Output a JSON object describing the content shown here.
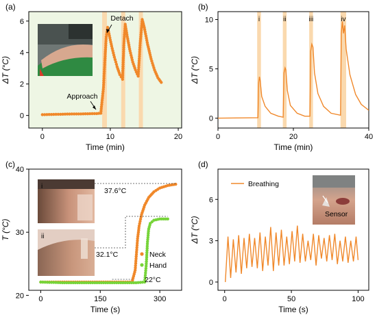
{
  "colors": {
    "orange": "#F0882A",
    "green": "#77D43A",
    "bg": "#EEF6E4",
    "band": "#FAD9AE"
  },
  "chart_data": [
    {
      "type": "scatter",
      "panel_label": "(a)",
      "xlabel": "Time (min)",
      "ylabel": "ΔT (°C)",
      "xlim": [
        -2,
        20.5
      ],
      "ylim": [
        -0.8,
        6.6
      ],
      "xticks": [
        "0",
        "10",
        "20"
      ],
      "yticks": [
        "0",
        "2",
        "4",
        "6"
      ],
      "background": "light green",
      "highlight_bands": [
        [
          8.8,
          9.5
        ],
        [
          11.6,
          12.2
        ],
        [
          14.2,
          14.8
        ]
      ],
      "annotations": {
        "approach": "Approach",
        "detach": "Detach"
      },
      "series": [
        {
          "points": [
            [
              0,
              0.05
            ],
            [
              2,
              0.07
            ],
            [
              4,
              0.09
            ],
            [
              6,
              0.1
            ],
            [
              8,
              0.12
            ],
            [
              8.6,
              0.14
            ],
            [
              9.0,
              1.8
            ],
            [
              9.2,
              3.5
            ],
            [
              9.4,
              5.0
            ],
            [
              9.6,
              5.6
            ],
            [
              9.8,
              5.2
            ],
            [
              10.2,
              4.4
            ],
            [
              10.6,
              3.7
            ],
            [
              11.0,
              3.1
            ],
            [
              11.4,
              2.6
            ],
            [
              11.8,
              2.3
            ],
            [
              12.0,
              4.6
            ],
            [
              12.2,
              5.8
            ],
            [
              12.5,
              5.0
            ],
            [
              12.9,
              4.1
            ],
            [
              13.3,
              3.4
            ],
            [
              13.7,
              2.9
            ],
            [
              14.1,
              2.5
            ],
            [
              14.4,
              4.6
            ],
            [
              14.7,
              6.1
            ],
            [
              15.0,
              5.6
            ],
            [
              15.5,
              4.5
            ],
            [
              16.0,
              3.6
            ],
            [
              16.5,
              2.9
            ],
            [
              17.0,
              2.4
            ],
            [
              17.5,
              2.1
            ]
          ]
        }
      ]
    },
    {
      "type": "line",
      "panel_label": "(b)",
      "xlabel": "Time (min)",
      "ylabel": "ΔT (°C)",
      "xlim": [
        0,
        40
      ],
      "ylim": [
        -1,
        10.8
      ],
      "xticks": [
        "0",
        "20",
        "40"
      ],
      "yticks": [
        "0",
        "5",
        "10"
      ],
      "band_labels": [
        "i",
        "ii",
        "iii",
        "iv"
      ],
      "highlight_bands": [
        [
          10.4,
          11.4
        ],
        [
          17.2,
          18.2
        ],
        [
          24.2,
          25.2
        ],
        [
          32.5,
          34.0
        ]
      ],
      "series": [
        {
          "points": [
            [
              0,
              0
            ],
            [
              10.6,
              0.05
            ],
            [
              10.8,
              3.6
            ],
            [
              11.0,
              4.2
            ],
            [
              11.2,
              3.8
            ],
            [
              11.6,
              2.2
            ],
            [
              12.5,
              1.2
            ],
            [
              14,
              0.5
            ],
            [
              16,
              0.2
            ],
            [
              17.3,
              0.1
            ],
            [
              17.5,
              4.6
            ],
            [
              17.8,
              5.1
            ],
            [
              18.0,
              4.9
            ],
            [
              18.4,
              2.8
            ],
            [
              19.2,
              1.3
            ],
            [
              21,
              0.5
            ],
            [
              23,
              0.2
            ],
            [
              24.4,
              0.2
            ],
            [
              24.6,
              6.8
            ],
            [
              24.9,
              7.5
            ],
            [
              25.2,
              7.2
            ],
            [
              25.6,
              4.6
            ],
            [
              26.5,
              2.5
            ],
            [
              28,
              1.2
            ],
            [
              30,
              0.5
            ],
            [
              32.5,
              0.3
            ],
            [
              32.7,
              8.6
            ],
            [
              33.0,
              9.8
            ],
            [
              33.3,
              8.6
            ],
            [
              33.6,
              9.4
            ],
            [
              34.0,
              7.0
            ],
            [
              35,
              4.4
            ],
            [
              36.5,
              2.4
            ],
            [
              38,
              1.4
            ],
            [
              40,
              0.8
            ]
          ]
        }
      ]
    },
    {
      "type": "scatter",
      "panel_label": "(c)",
      "xlabel": "Time (s)",
      "ylabel": "T (°C)",
      "xlim": [
        -30,
        355
      ],
      "ylim": [
        20.8,
        40
      ],
      "xticks": [
        "0",
        "150",
        "300"
      ],
      "yticks": [
        "20",
        "30",
        "40"
      ],
      "legend": {
        "neck": "Neck",
        "hand": "Hand",
        "position": "lower-right"
      },
      "annotations": {
        "neck_max": "37.6°C",
        "hand_max": "32.1°C",
        "baseline": "22°C",
        "inset1": "i",
        "inset2": "ii"
      },
      "series": [
        {
          "name": "Neck",
          "points": [
            [
              0,
              22.1
            ],
            [
              60,
              22.1
            ],
            [
              120,
              22.1
            ],
            [
              180,
              22.1
            ],
            [
              230,
              22.1
            ],
            [
              238,
              24.0
            ],
            [
              241,
              26.5
            ],
            [
              244,
              29.0
            ],
            [
              248,
              31.0
            ],
            [
              254,
              32.8
            ],
            [
              262,
              34.3
            ],
            [
              272,
              35.5
            ],
            [
              285,
              36.4
            ],
            [
              300,
              37.0
            ],
            [
              320,
              37.4
            ],
            [
              340,
              37.6
            ]
          ]
        },
        {
          "name": "Hand",
          "points": [
            [
              0,
              22.1
            ],
            [
              60,
              22.0
            ],
            [
              120,
              22.0
            ],
            [
              180,
              22.0
            ],
            [
              240,
              22.0
            ],
            [
              262,
              22.1
            ],
            [
              266,
              25.0
            ],
            [
              269,
              28.5
            ],
            [
              272,
              30.5
            ],
            [
              276,
              31.4
            ],
            [
              285,
              31.9
            ],
            [
              300,
              32.1
            ],
            [
              320,
              32.1
            ]
          ]
        }
      ]
    },
    {
      "type": "line",
      "panel_label": "(d)",
      "xlabel": "Time (s)",
      "ylabel": "ΔT (°C)",
      "xlim": [
        -5,
        108
      ],
      "ylim": [
        -0.6,
        8.2
      ],
      "xticks": [
        "0",
        "50",
        "100"
      ],
      "yticks": [
        "0",
        "3",
        "6"
      ],
      "legend": {
        "label": "Breathing",
        "position": "top-left"
      },
      "annotations": {
        "sensor": "Sensor"
      },
      "series": [
        {
          "name": "Breathing",
          "points": [
            [
              0.5,
              0
            ],
            [
              2.5,
              3.3
            ],
            [
              4.5,
              0.3
            ],
            [
              6.5,
              3.1
            ],
            [
              8.5,
              0.7
            ],
            [
              10.5,
              3.4
            ],
            [
              12.5,
              0.6
            ],
            [
              14.5,
              3.2
            ],
            [
              16.5,
              1.0
            ],
            [
              18.5,
              3.5
            ],
            [
              20.5,
              1.1
            ],
            [
              22.5,
              3.2
            ],
            [
              24.5,
              1.0
            ],
            [
              26.5,
              3.6
            ],
            [
              28.5,
              0.8
            ],
            [
              30.5,
              3.3
            ],
            [
              32.5,
              1.2
            ],
            [
              34.5,
              4.0
            ],
            [
              36.5,
              0.8
            ],
            [
              38.5,
              3.6
            ],
            [
              40.5,
              1.2
            ],
            [
              42.5,
              3.8
            ],
            [
              44.5,
              1.2
            ],
            [
              46.5,
              3.3
            ],
            [
              48.5,
              1.3
            ],
            [
              50.5,
              3.7
            ],
            [
              52.5,
              1.5
            ],
            [
              54.5,
              4.1
            ],
            [
              56.5,
              1.4
            ],
            [
              58.5,
              3.5
            ],
            [
              60.5,
              1.5
            ],
            [
              62.5,
              3.0
            ],
            [
              64.5,
              1.6
            ],
            [
              66.5,
              3.5
            ],
            [
              68.5,
              1.2
            ],
            [
              70.5,
              3.4
            ],
            [
              72.5,
              1.7
            ],
            [
              74.5,
              3.2
            ],
            [
              76.5,
              1.5
            ],
            [
              78.5,
              3.4
            ],
            [
              80.5,
              1.6
            ],
            [
              82.5,
              3.5
            ],
            [
              84.5,
              1.3
            ],
            [
              86.5,
              3.0
            ],
            [
              88.5,
              1.5
            ],
            [
              90.5,
              3.3
            ],
            [
              92.5,
              1.4
            ],
            [
              94.5,
              3.0
            ],
            [
              96.5,
              1.5
            ],
            [
              98.5,
              3.3
            ],
            [
              100,
              1.6
            ]
          ]
        }
      ]
    }
  ]
}
